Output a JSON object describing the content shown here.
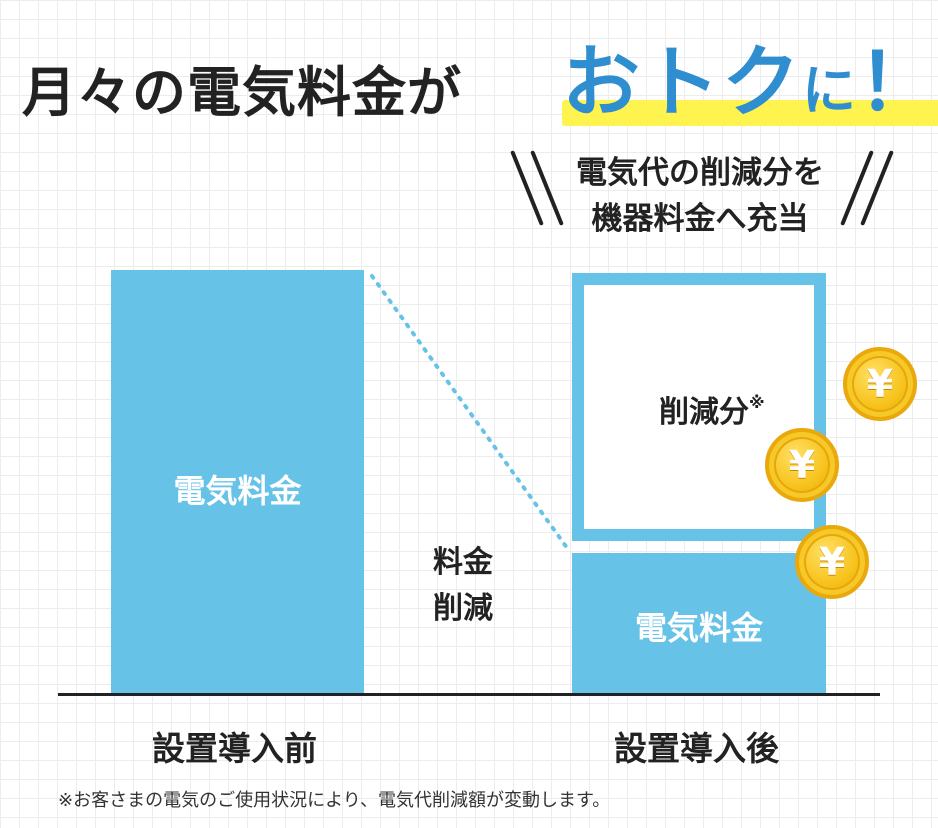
{
  "headline": {
    "part1": "月々の電気料金が",
    "accent": "おトク",
    "part2": "に",
    "exclaim": "！"
  },
  "callout": {
    "line1": "電気代の削減分を",
    "line2": "機器料金へ充当"
  },
  "bars": {
    "before_label": "電気料金",
    "after_label": "電気料金",
    "reduction_label": "削減分",
    "reduction_mark": "※"
  },
  "middle": {
    "line1": "料金",
    "line2": "削減"
  },
  "axis": {
    "before": "設置導入前",
    "after": "設置導入後"
  },
  "coins": {
    "symbol": "¥",
    "count": 3
  },
  "footnote": "※お客さまの電気のご使用状況により、電気代削減額が変動します。",
  "colors": {
    "bar_blue": "#67c2e8",
    "accent_blue": "#2f8ecf",
    "highlight_yellow": "#fff44f",
    "coin_gold": "#f7c21b"
  }
}
